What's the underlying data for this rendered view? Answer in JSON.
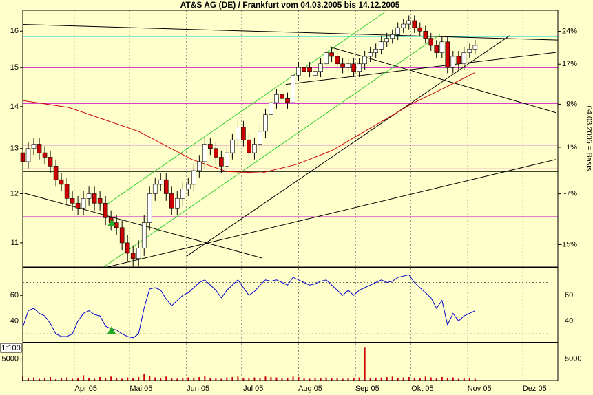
{
  "chart_data": [
    {
      "type": "candlestick",
      "title": "AT&S AG (DE) / Frankfurt vom 04.03.2005 bis 14.12.2005",
      "y2_label": "04.03.2005 = Basis",
      "log": true,
      "ylim": [
        10.54,
        16.6
      ],
      "yticks": [
        11,
        12,
        13,
        14,
        15,
        16
      ],
      "y2_scale": "log-return",
      "y2lim": [
        -18.3,
        28.7
      ],
      "y2ticks": [
        {
          "value": 24,
          "label": "24%"
        },
        {
          "value": 17,
          "label": "17%"
        },
        {
          "value": 9,
          "label": "9%"
        },
        {
          "value": 1,
          "label": "1%"
        },
        {
          "value": -7,
          "label": "-7%"
        },
        {
          "value": -15,
          "label": "-15%"
        }
      ],
      "xlim": [
        0,
        291
      ],
      "xticks": [
        {
          "value": 28,
          "label": "Apr 05"
        },
        {
          "value": 58,
          "label": "Mai 05"
        },
        {
          "value": 89,
          "label": "Jun 05"
        },
        {
          "value": 119,
          "label": "Jul 05"
        },
        {
          "value": 150,
          "label": "Aug 05"
        },
        {
          "value": 181,
          "label": "Sep 05"
        },
        {
          "value": 211,
          "label": "Okt 05"
        },
        {
          "value": 242,
          "label": "Nov 05"
        },
        {
          "value": 272,
          "label": "Dez 05"
        }
      ],
      "x": [
        0,
        3,
        6,
        9,
        12,
        15,
        18,
        21,
        24,
        27,
        30,
        33,
        36,
        39,
        42,
        45,
        48,
        51,
        54,
        57,
        60,
        63,
        66,
        69,
        72,
        75,
        78,
        81,
        84,
        87,
        90,
        93,
        96,
        99,
        102,
        105,
        108,
        111,
        114,
        117,
        120,
        123,
        126,
        129,
        132,
        135,
        138,
        141,
        144,
        147,
        150,
        153,
        156,
        159,
        162,
        165,
        168,
        171,
        174,
        177,
        180,
        183,
        186,
        189,
        192,
        195,
        198,
        201,
        204,
        207,
        210,
        213,
        216,
        219,
        222,
        225,
        228,
        231,
        234,
        237,
        240,
        243,
        246
      ],
      "open": [
        12.9,
        12.7,
        13.0,
        13.1,
        12.9,
        12.8,
        12.6,
        12.3,
        12.2,
        11.9,
        11.8,
        11.7,
        11.9,
        12.0,
        11.9,
        11.8,
        11.5,
        11.4,
        11.3,
        11.0,
        10.8,
        10.7,
        10.9,
        11.4,
        12.0,
        12.2,
        12.3,
        12.0,
        11.7,
        11.9,
        12.1,
        12.2,
        12.5,
        12.7,
        13.1,
        13.0,
        12.8,
        12.6,
        12.9,
        13.2,
        13.5,
        13.2,
        12.9,
        13.1,
        13.4,
        13.8,
        14.1,
        14.3,
        14.2,
        14.1,
        14.8,
        15.0,
        15.0,
        14.8,
        14.9,
        15.1,
        15.4,
        15.3,
        15.1,
        15.0,
        15.1,
        14.9,
        15.1,
        15.3,
        15.4,
        15.5,
        15.7,
        15.8,
        15.9,
        16.1,
        16.2,
        16.3,
        16.1,
        16.0,
        15.8,
        15.6,
        15.4,
        15.7,
        15.0,
        15.3,
        15.1,
        15.4,
        15.5
      ],
      "high": [
        13.05,
        13.15,
        13.25,
        13.25,
        13.05,
        12.95,
        12.75,
        12.45,
        12.35,
        12.05,
        11.95,
        12.05,
        12.15,
        12.15,
        12.05,
        11.95,
        11.65,
        11.55,
        11.45,
        11.15,
        10.95,
        11.05,
        11.55,
        12.15,
        12.35,
        12.45,
        12.45,
        12.15,
        12.05,
        12.25,
        12.35,
        12.65,
        12.85,
        13.25,
        13.25,
        13.15,
        12.95,
        13.05,
        13.35,
        13.65,
        13.65,
        13.35,
        13.25,
        13.55,
        13.95,
        14.25,
        14.45,
        14.45,
        14.35,
        14.95,
        15.15,
        15.15,
        15.15,
        15.05,
        15.25,
        15.55,
        15.55,
        15.45,
        15.25,
        15.25,
        15.25,
        15.25,
        15.45,
        15.55,
        15.65,
        15.85,
        15.95,
        16.05,
        16.25,
        16.35,
        16.45,
        16.45,
        16.25,
        16.15,
        15.95,
        15.75,
        15.85,
        15.85,
        15.45,
        15.45,
        15.55,
        15.65,
        15.75
      ],
      "low": [
        12.55,
        12.55,
        12.85,
        12.75,
        12.65,
        12.45,
        12.15,
        12.05,
        11.75,
        11.65,
        11.55,
        11.55,
        11.75,
        11.65,
        11.65,
        11.35,
        11.25,
        11.15,
        10.85,
        10.65,
        10.55,
        10.55,
        10.75,
        11.25,
        11.85,
        12.05,
        11.85,
        11.55,
        11.55,
        11.75,
        11.95,
        12.05,
        12.35,
        12.55,
        12.85,
        12.65,
        12.45,
        12.45,
        12.75,
        13.05,
        13.05,
        12.75,
        12.75,
        12.95,
        13.25,
        13.65,
        13.95,
        14.05,
        13.95,
        13.95,
        14.65,
        14.75,
        14.75,
        14.65,
        14.75,
        14.95,
        15.15,
        14.95,
        14.85,
        14.85,
        14.75,
        14.75,
        14.95,
        15.15,
        15.25,
        15.35,
        15.55,
        15.65,
        15.75,
        15.95,
        16.05,
        15.95,
        15.85,
        15.65,
        15.45,
        15.25,
        15.25,
        14.85,
        14.85,
        14.95,
        14.95,
        15.25,
        15.35
      ],
      "close": [
        12.7,
        13.0,
        13.1,
        12.9,
        12.8,
        12.6,
        12.3,
        12.2,
        11.9,
        11.8,
        11.7,
        11.9,
        12.0,
        11.8,
        11.8,
        11.5,
        11.4,
        11.3,
        11.0,
        10.8,
        10.7,
        10.9,
        11.4,
        12.0,
        12.2,
        12.3,
        12.0,
        11.7,
        11.9,
        12.1,
        12.2,
        12.5,
        12.7,
        13.1,
        13.0,
        12.8,
        12.6,
        12.9,
        13.2,
        13.5,
        13.2,
        12.9,
        13.1,
        13.4,
        13.8,
        14.1,
        14.3,
        14.2,
        14.1,
        14.8,
        15.0,
        14.9,
        14.9,
        14.9,
        15.1,
        15.4,
        15.3,
        15.1,
        15.0,
        15.1,
        14.9,
        15.1,
        15.3,
        15.4,
        15.5,
        15.7,
        15.8,
        15.9,
        16.1,
        16.2,
        16.3,
        16.1,
        16.0,
        15.8,
        15.6,
        15.4,
        15.7,
        15.0,
        15.3,
        15.1,
        15.4,
        15.5,
        15.6
      ],
      "up_color": "#ffffff",
      "down_color": "#cc0000",
      "series": [
        {
          "color": "#cc0000",
          "x": [
            0,
            25,
            63,
            92,
            111,
            130,
            149,
            168,
            186,
            212,
            231,
            246
          ],
          "values": [
            14.15,
            13.98,
            13.4,
            12.75,
            12.48,
            12.45,
            12.64,
            12.95,
            13.4,
            14.08,
            14.51,
            14.87
          ]
        }
      ],
      "hlines": [
        {
          "value": 16.41,
          "color": "#cc00cc"
        },
        {
          "value": 15.0,
          "color": "#cc00cc"
        },
        {
          "value": 14.08,
          "color": "#cc00cc"
        },
        {
          "value": 13.08,
          "color": "#cc00cc"
        },
        {
          "value": 12.54,
          "color": "#cc00cc"
        },
        {
          "value": 12.48,
          "color": "#000000"
        },
        {
          "value": 11.52,
          "color": "#cc00cc"
        },
        {
          "value": 15.85,
          "color": "#00cccc"
        }
      ],
      "lines": [
        {
          "x": [
            0,
            291
          ],
          "y": [
            16.19,
            15.75
          ],
          "color": "#000000"
        },
        {
          "x": [
            0,
            130
          ],
          "y": [
            12.02,
            10.71
          ],
          "color": "#000000"
        },
        {
          "x": [
            46,
            290
          ],
          "y": [
            10.54,
            12.75
          ],
          "color": "#000000"
        },
        {
          "x": [
            89,
            265
          ],
          "y": [
            10.74,
            15.88
          ],
          "color": "#000000"
        },
        {
          "x": [
            143,
            290
          ],
          "y": [
            14.56,
            15.41
          ],
          "color": "#000000"
        },
        {
          "x": [
            167,
            290
          ],
          "y": [
            15.56,
            13.85
          ],
          "color": "#000000"
        },
        {
          "x": [
            44,
            227
          ],
          "y": [
            10.54,
            15.9
          ],
          "color": "#33cc33"
        },
        {
          "x": [
            44,
            197
          ],
          "y": [
            11.73,
            16.55
          ],
          "color": "#33cc33"
        }
      ]
    },
    {
      "type": "line",
      "ylim": [
        23.7,
        81
      ],
      "yticks": [
        60,
        40
      ],
      "levels": [
        70,
        30
      ],
      "color": "#0000cc",
      "values": [
        35,
        48,
        50,
        46,
        44,
        38,
        30,
        28,
        28,
        30,
        40,
        46,
        48,
        45,
        44,
        36,
        34,
        33,
        30,
        28,
        27,
        30,
        50,
        65,
        66,
        64,
        57,
        52,
        56,
        60,
        62,
        66,
        70,
        72,
        68,
        64,
        58,
        64,
        68,
        72,
        66,
        60,
        63,
        68,
        72,
        71,
        72,
        70,
        68,
        74,
        72,
        70,
        68,
        69,
        71,
        72,
        68,
        64,
        60,
        64,
        60,
        64,
        66,
        68,
        70,
        72,
        70,
        71,
        74,
        75,
        76,
        70,
        66,
        62,
        58,
        50,
        56,
        37,
        46,
        40,
        44,
        46,
        48
      ]
    },
    {
      "type": "bar",
      "scale_label": "1:100",
      "ylim": [
        0,
        8550
      ],
      "yticks": [
        5000
      ],
      "color": "#cc0000",
      "values": [
        900,
        500,
        700,
        400,
        600,
        800,
        300,
        500,
        700,
        400,
        600,
        1200,
        500,
        400,
        800,
        600,
        900,
        500,
        400,
        700,
        600,
        800,
        1500,
        1100,
        700,
        500,
        900,
        600,
        400,
        500,
        700,
        600,
        800,
        1000,
        600,
        500,
        400,
        700,
        800,
        900,
        600,
        500,
        700,
        600,
        900,
        800,
        700,
        500,
        600,
        900,
        800,
        500,
        400,
        600,
        500,
        700,
        600,
        500,
        400,
        500,
        600,
        700,
        7700,
        600,
        500,
        700,
        800,
        900,
        600,
        700,
        800,
        600,
        500,
        900,
        700,
        600,
        800,
        500,
        700,
        400,
        600,
        500,
        400
      ]
    }
  ]
}
